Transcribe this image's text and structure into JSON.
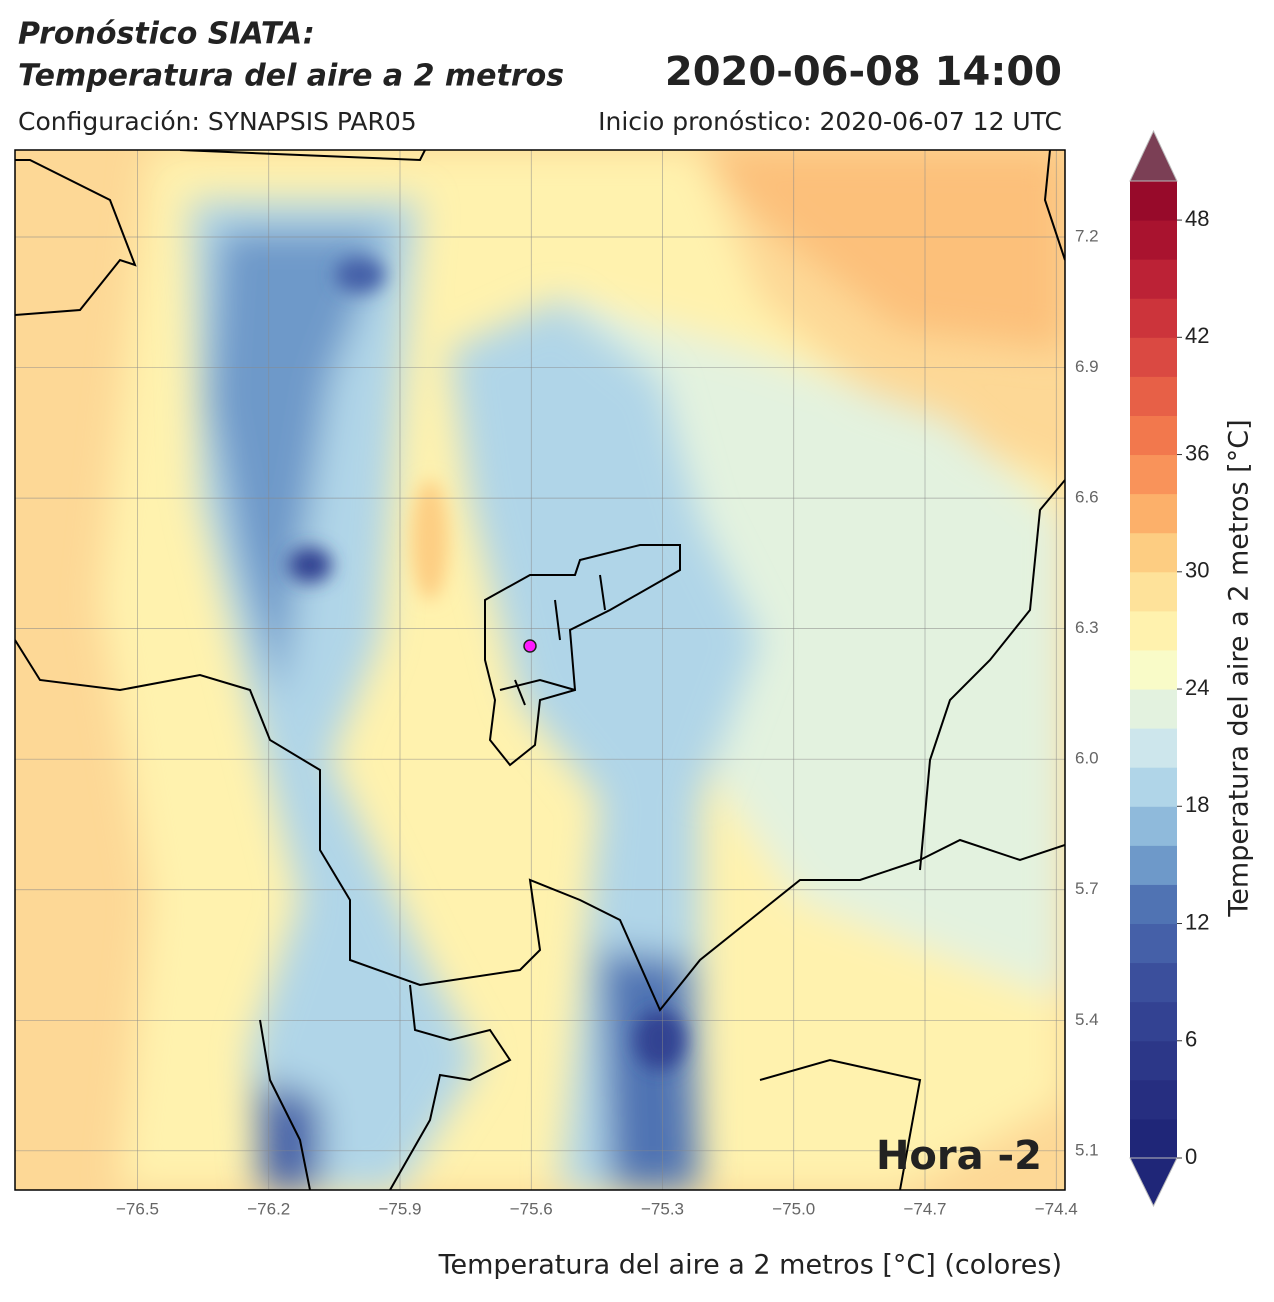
{
  "title": {
    "line1": "Pronóstico SIATA:",
    "line2": "Temperatura del aire a 2 metros",
    "datetime": "2020-06-08 14:00"
  },
  "subtitle_left": "Configuración: SYNAPSIS PAR05",
  "subtitle_right": "Inicio pronóstico: 2020-06-07 12 UTC",
  "chart_data": {
    "type": "map",
    "xlabel": "Temperatura del aire a 2 metros [°C] (colores)",
    "annotation": "Hora -2",
    "xlim": [
      -76.78,
      -74.38
    ],
    "ylim": [
      5.01,
      7.4
    ],
    "xticks": [
      {
        "value": -76.5,
        "label": "−76.5"
      },
      {
        "value": -76.2,
        "label": "−76.2"
      },
      {
        "value": -75.9,
        "label": "−75.9"
      },
      {
        "value": -75.6,
        "label": "−75.6"
      },
      {
        "value": -75.3,
        "label": "−75.3"
      },
      {
        "value": -75.0,
        "label": "−75.0"
      },
      {
        "value": -74.7,
        "label": "−74.7"
      },
      {
        "value": -74.4,
        "label": "−74.4"
      }
    ],
    "yticks": [
      5.1,
      5.4,
      5.7,
      {
        "value": 6.0,
        "label": "6.0"
      },
      6.3,
      6.6,
      6.9,
      7.2
    ],
    "grid": true,
    "colorbar": {
      "label": "Temperatura del aire a 2 metros [°C]",
      "levels": [
        0,
        2,
        4,
        6,
        8,
        10,
        12,
        14,
        16,
        18,
        20,
        22,
        24,
        26,
        28,
        30,
        32,
        34,
        36,
        38,
        40,
        42,
        44,
        46,
        48,
        50
      ],
      "colors": [
        "#1f2678",
        "#262e80",
        "#2c3788",
        "#334292",
        "#3b4f9c",
        "#4560a8",
        "#5073b3",
        "#6e99c9",
        "#8fbadb",
        "#b0d5e8",
        "#cde6ec",
        "#e3f2df",
        "#f9fbc8",
        "#fff2ae",
        "#fee29a",
        "#fdcd82",
        "#fcb06a",
        "#f9935a",
        "#f2784d",
        "#e76047",
        "#da4942",
        "#cc343b",
        "#bc2236",
        "#a9132f",
        "#970a2a"
      ],
      "extend_colors": {
        "min": "#1f2678",
        "max": "#7b3f55"
      },
      "ticks": [
        0,
        6,
        12,
        18,
        24,
        30,
        36,
        42,
        48
      ]
    }
  }
}
